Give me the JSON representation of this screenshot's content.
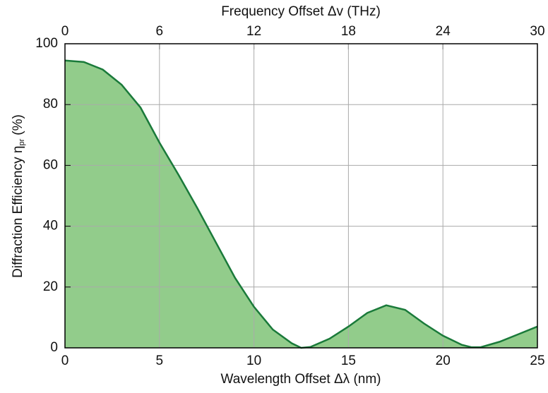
{
  "chart_data": {
    "type": "area",
    "xlabel": "Wavelength Offset Δλ (nm)",
    "x2label": "Frequency Offset Δv (THz)",
    "ylabel": "Diffraction Efficiency η",
    "ylabel_sub": "pr",
    "ylabel_unit": "(%)",
    "x": [
      0,
      1,
      2,
      3,
      4,
      5,
      6,
      7,
      8,
      9,
      10,
      11,
      12,
      12.5,
      13,
      14,
      15,
      16,
      17,
      18,
      19,
      20,
      21,
      21.5,
      22,
      23,
      24,
      25
    ],
    "series": [
      {
        "color": "#1a7a3a",
        "fill": "#92cc8b",
        "values": [
          94.5,
          94,
          91.5,
          86.5,
          79,
          67.5,
          57,
          46,
          34.5,
          23,
          13.5,
          6,
          1.5,
          0,
          0.3,
          3,
          7,
          11.5,
          14,
          12.5,
          8,
          4,
          1,
          0.2,
          0.2,
          2,
          4.5,
          7
        ]
      }
    ],
    "xlim": [
      0,
      25
    ],
    "xticks": [
      0,
      5,
      10,
      15,
      20,
      25
    ],
    "x2lim": [
      0,
      30
    ],
    "x2ticks": [
      0,
      6,
      12,
      18,
      24,
      30
    ],
    "ylim": [
      0,
      100
    ],
    "yticks": [
      0,
      20,
      40,
      60,
      80,
      100
    ],
    "grid": true
  }
}
